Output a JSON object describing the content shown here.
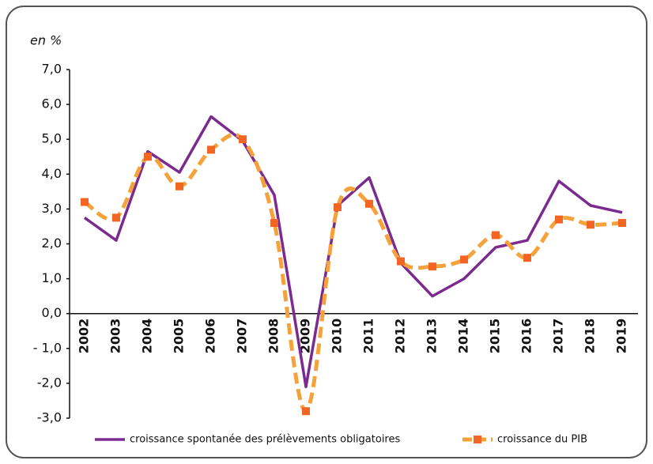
{
  "chart_data": {
    "type": "line",
    "y_label": "en %",
    "categories": [
      "2002",
      "2003",
      "2004",
      "2005",
      "2006",
      "2007",
      "2008",
      "2009",
      "2010",
      "2011",
      "2012",
      "2013",
      "2014",
      "2015",
      "2016",
      "2017",
      "2018",
      "2019"
    ],
    "series": [
      {
        "name": "croissance spontanée des prélèvements obligatoires",
        "color": "#7b2a8e",
        "style": "solid",
        "values": [
          2.75,
          2.1,
          4.65,
          4.05,
          5.65,
          4.95,
          3.4,
          -2.1,
          3.1,
          3.9,
          1.45,
          0.5,
          1.0,
          1.9,
          2.1,
          3.8,
          3.1,
          2.9
        ]
      },
      {
        "name": "croissance du PIB",
        "color": "#f5a23a",
        "marker_color": "#f26522",
        "style": "dashed",
        "values": [
          3.2,
          2.75,
          4.5,
          3.65,
          4.7,
          5.0,
          2.6,
          -2.8,
          3.05,
          3.15,
          1.5,
          1.35,
          1.55,
          2.25,
          1.6,
          2.7,
          2.55,
          2.6
        ]
      }
    ],
    "ylim": [
      -3,
      7
    ],
    "yticks": [
      {
        "value": -3,
        "label": "-3,0"
      },
      {
        "value": -2,
        "label": "-2,0"
      },
      {
        "value": -1,
        "label": "- 1,0"
      },
      {
        "value": 0,
        "label": "0,0"
      },
      {
        "value": 1,
        "label": "1,0"
      },
      {
        "value": 2,
        "label": "2,0"
      },
      {
        "value": 3,
        "label": "3,0"
      },
      {
        "value": 4,
        "label": "4,0"
      },
      {
        "value": 5,
        "label": "5,0"
      },
      {
        "value": 6,
        "label": "6,0"
      },
      {
        "value": 7,
        "label": "7,0"
      }
    ],
    "grid": false,
    "legend": "bottom"
  }
}
